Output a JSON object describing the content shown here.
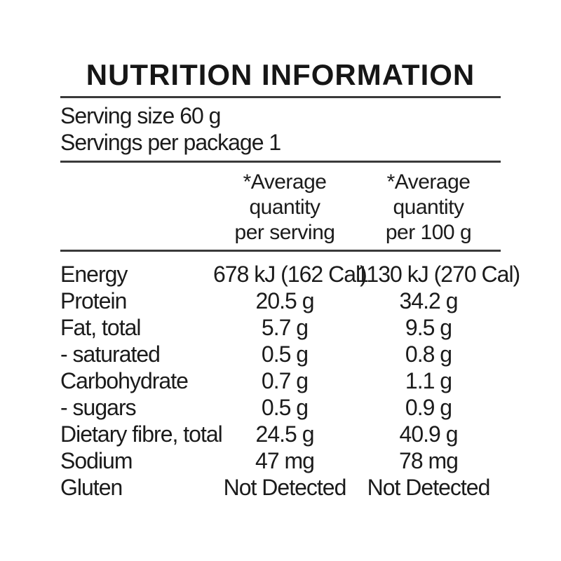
{
  "panel": {
    "title": "NUTRITION INFORMATION",
    "serving_size": "Serving size 60 g",
    "servings_per_package": "Servings per package 1",
    "columns": {
      "per_serving": [
        "*Average",
        "quantity",
        "per serving"
      ],
      "per_100g": [
        "*Average",
        "quantity",
        "per 100 g"
      ]
    },
    "rows": [
      {
        "label": "Energy",
        "per_serving": "678 kJ (162 Cal)",
        "per_100g": "1130 kJ (270 Cal)"
      },
      {
        "label": "Protein",
        "per_serving": "20.5 g",
        "per_100g": "34.2 g"
      },
      {
        "label": "Fat, total",
        "per_serving": "5.7 g",
        "per_100g": "9.5 g"
      },
      {
        "label": "- saturated",
        "per_serving": "0.5 g",
        "per_100g": "0.8 g"
      },
      {
        "label": "Carbohydrate",
        "per_serving": "0.7 g",
        "per_100g": "1.1 g"
      },
      {
        "label": "- sugars",
        "per_serving": "0.5 g",
        "per_100g": "0.9 g"
      },
      {
        "label": "Dietary fibre, total",
        "per_serving": "24.5 g",
        "per_100g": "40.9 g"
      },
      {
        "label": "Sodium",
        "per_serving": "47 mg",
        "per_100g": "78 mg"
      },
      {
        "label": "Gluten",
        "per_serving": "Not Detected",
        "per_100g": "Not Detected"
      }
    ],
    "colors": {
      "background": "#ffffff",
      "text": "#1b1b1b",
      "rule": "#3a3a3a"
    }
  }
}
